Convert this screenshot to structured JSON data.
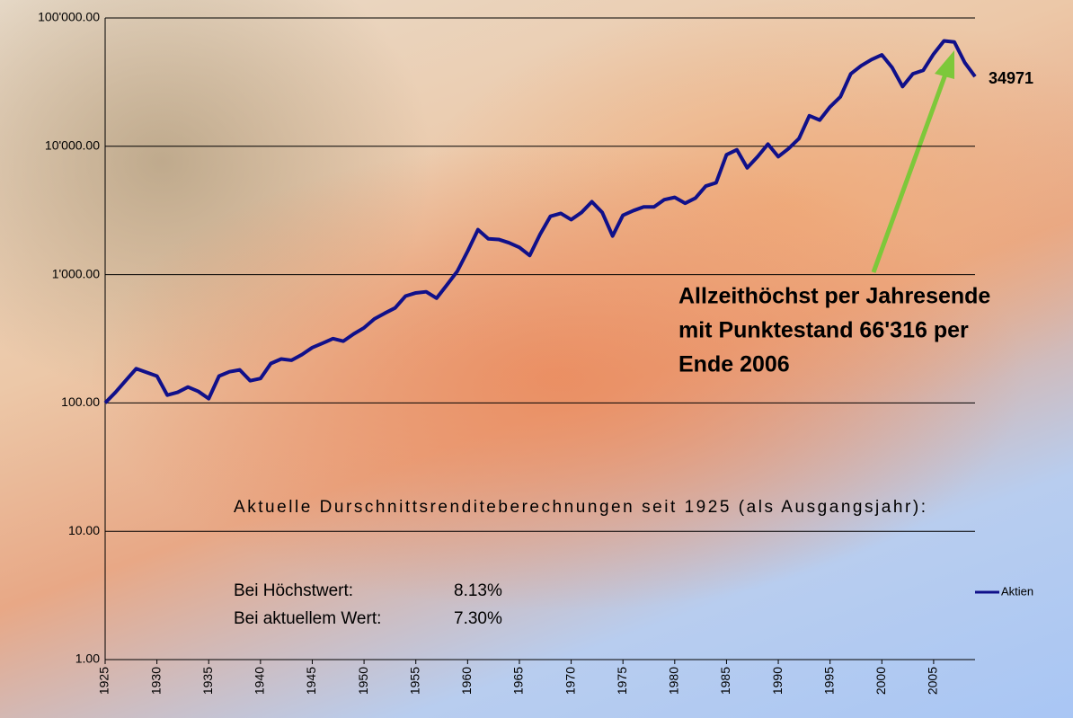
{
  "chart_data": {
    "type": "line",
    "x": [
      1925,
      1926,
      1927,
      1928,
      1929,
      1930,
      1931,
      1932,
      1933,
      1934,
      1935,
      1936,
      1937,
      1938,
      1939,
      1940,
      1941,
      1942,
      1943,
      1944,
      1945,
      1946,
      1947,
      1948,
      1949,
      1950,
      1951,
      1952,
      1953,
      1954,
      1955,
      1956,
      1957,
      1958,
      1959,
      1960,
      1961,
      1962,
      1963,
      1964,
      1965,
      1966,
      1967,
      1968,
      1969,
      1970,
      1971,
      1972,
      1973,
      1974,
      1975,
      1976,
      1977,
      1978,
      1979,
      1980,
      1981,
      1982,
      1983,
      1984,
      1985,
      1986,
      1987,
      1988,
      1989,
      1990,
      1991,
      1992,
      1993,
      1994,
      1995,
      1996,
      1997,
      1998,
      1999,
      2000,
      2001,
      2002,
      2003,
      2004,
      2005,
      2006,
      2007,
      2008,
      2009
    ],
    "series": [
      {
        "name": "Aktien",
        "color": "#10108a",
        "values": [
          100,
          121,
          150,
          185,
          173,
          162,
          115,
          121,
          133,
          123,
          108,
          162,
          175,
          181,
          149,
          155,
          203,
          220,
          215,
          238,
          270,
          292,
          317,
          303,
          345,
          385,
          452,
          500,
          550,
          680,
          720,
          735,
          655,
          830,
          1060,
          1520,
          2240,
          1900,
          1880,
          1770,
          1630,
          1410,
          2060,
          2850,
          3000,
          2680,
          3050,
          3700,
          3050,
          2000,
          2900,
          3150,
          3370,
          3370,
          3840,
          4000,
          3600,
          3950,
          4900,
          5200,
          8600,
          9400,
          6800,
          8300,
          10400,
          8300,
          9600,
          11500,
          17300,
          16000,
          20300,
          24300,
          36700,
          42400,
          47400,
          51600,
          41000,
          29200,
          36700,
          39100,
          52400,
          66316,
          65000,
          45000,
          34971
        ]
      }
    ],
    "xlim": [
      1925,
      2009
    ],
    "xticks": [
      1925,
      1930,
      1935,
      1940,
      1945,
      1950,
      1955,
      1960,
      1965,
      1970,
      1975,
      1980,
      1985,
      1990,
      1995,
      2000,
      2005
    ],
    "ylim": [
      1,
      100000
    ],
    "log_y": true,
    "yticks": [
      {
        "value": 1,
        "label": "1.00"
      },
      {
        "value": 10,
        "label": "10.00"
      },
      {
        "value": 100,
        "label": "100.00"
      },
      {
        "value": 1000,
        "label": "1'000.00"
      },
      {
        "value": 10000,
        "label": "10'000.00"
      },
      {
        "value": 100000,
        "label": "100'000.00"
      }
    ],
    "grid": true,
    "legend": "right",
    "annotation": [
      "Allzeithöchst per Jahresende",
      "mit Punktestand 66'316 per",
      "Ende 2006"
    ],
    "stats_heading": "Aktuelle Durschnittsrenditeberechnungen seit 1925 (als Ausgangsjahr):",
    "stats": [
      [
        "Bei Höchstwert:",
        "8.13%"
      ],
      [
        "Bei aktuellem Wert:",
        "7.30%"
      ]
    ]
  }
}
